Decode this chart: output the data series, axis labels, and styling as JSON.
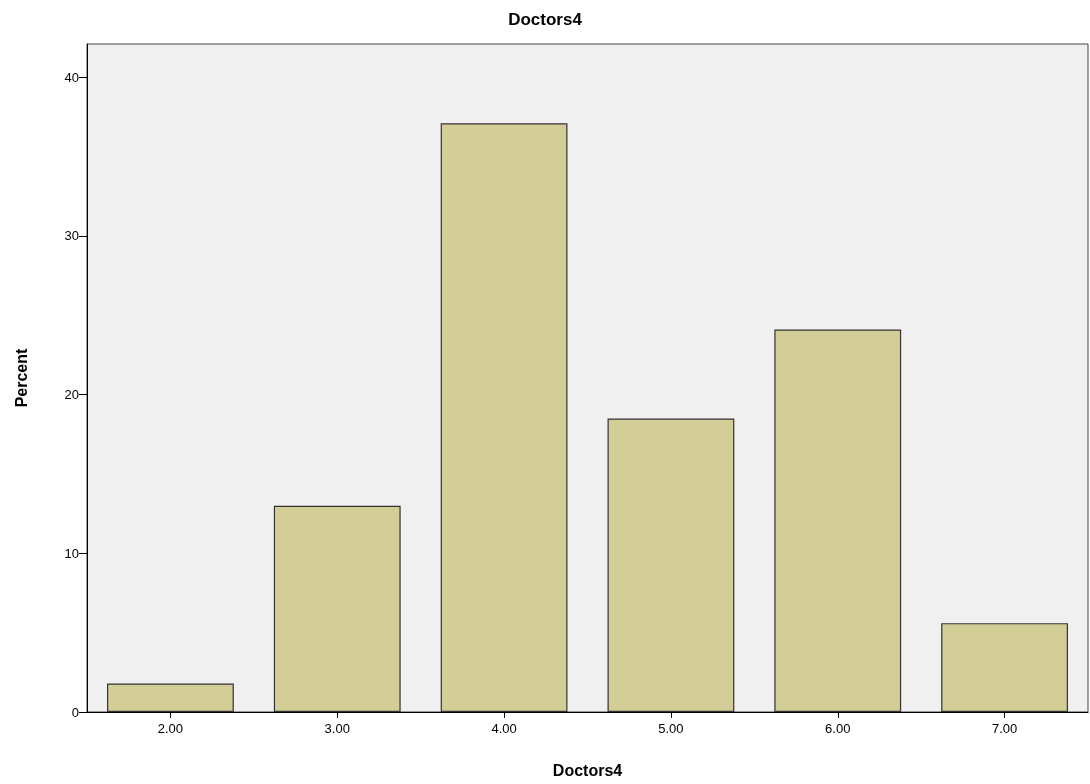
{
  "chart_data": {
    "type": "bar",
    "title": "Doctors4",
    "xlabel": "Doctors4",
    "ylabel": "Percent",
    "categories": [
      "2.00",
      "3.00",
      "4.00",
      "5.00",
      "6.00",
      "7.00"
    ],
    "values": [
      1.8,
      13.0,
      37.1,
      18.5,
      24.1,
      5.6
    ],
    "color": "#d3ce97",
    "ylim": [
      0,
      42.1
    ],
    "yticks": [
      0,
      10,
      20,
      30,
      40
    ],
    "grid": false
  }
}
